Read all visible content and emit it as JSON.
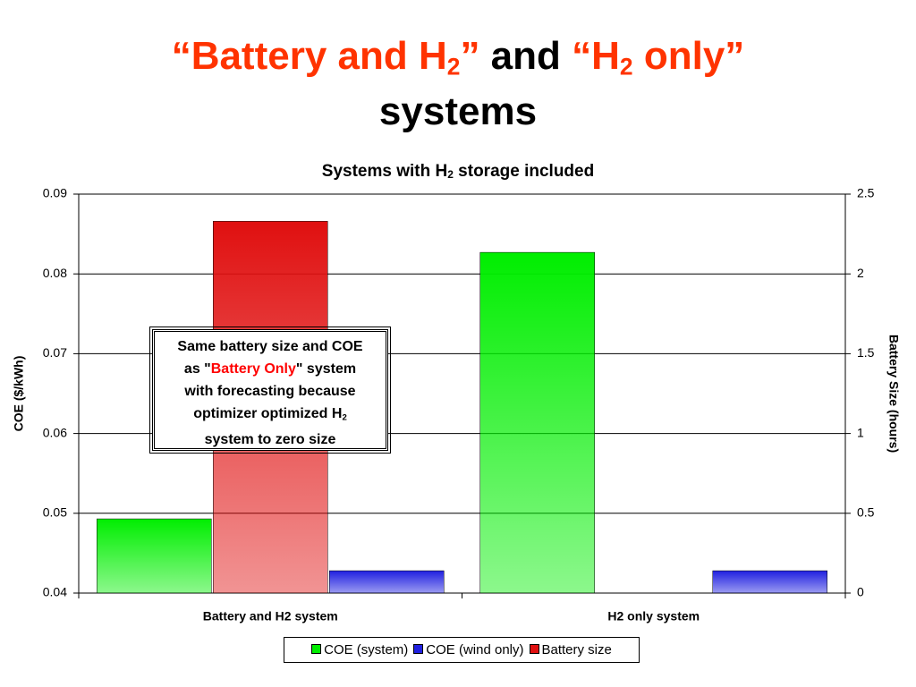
{
  "header": {
    "title": [
      "“Battery and H",
      "2",
      "”",
      " and ",
      "“H",
      "2",
      " only”",
      "systems"
    ]
  },
  "chart_data": {
    "type": "bar",
    "title": [
      "Systems with H",
      "2",
      " storage included"
    ],
    "categories": [
      "Battery and H2 system",
      "H2 only system"
    ],
    "series": [
      {
        "name": "COE (system)",
        "color": "#00ee00",
        "values": [
          0.0493,
          0.0827
        ]
      },
      {
        "name": "COE (wind only)",
        "color": "#2020e0",
        "values": [
          0.0428,
          0.0428
        ]
      },
      {
        "name": "Battery size",
        "color": "#e01010",
        "values": [
          2.33,
          0
        ],
        "axis": "y2"
      }
    ],
    "ylabel": "COE ($/kWh)",
    "y2label": "Battery Size (hours)",
    "ylim": [
      0.04,
      0.09
    ],
    "yticks": [
      0.04,
      0.05,
      0.06,
      0.07,
      0.08,
      0.09
    ],
    "y2lim": [
      0,
      2.5
    ],
    "y2ticks": [
      0,
      0.5,
      1,
      1.5,
      2,
      2.5
    ],
    "grid": true,
    "legend": "bottom",
    "annotation": [
      "Same battery size and COE",
      "as \"",
      "Battery Only",
      "\" system",
      "with forecasting because",
      "optimizer optimized H",
      "2",
      "system to zero size"
    ]
  }
}
